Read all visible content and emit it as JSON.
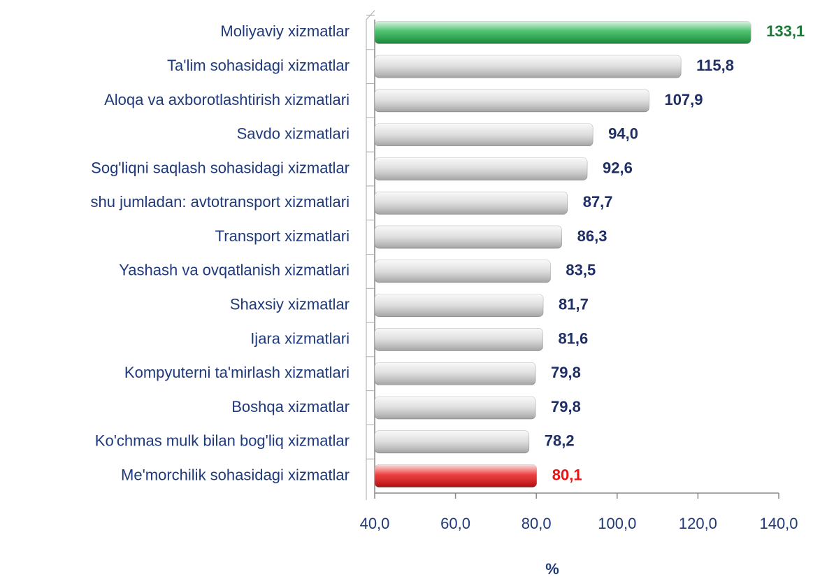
{
  "chart_data": {
    "type": "bar",
    "orientation": "horizontal",
    "categories": [
      "Moliyaviy xizmatlar",
      "Ta'lim sohasidagi xizmatlar",
      "Aloqa va axborotlashtirish xizmatlari",
      "Savdo xizmatlari",
      "Sog'liqni saqlash sohasidagi xizmatlar",
      "shu jumladan: avtotransport xizmatlari",
      "Transport xizmatlari",
      "Yashash va ovqatlanish xizmatlari",
      "Shaxsiy xizmatlar",
      "Ijara xizmatlari",
      "Kompyuterni ta'mirlash xizmatlari",
      "Boshqa xizmatlar",
      "Ko'chmas mulk bilan bog'liq xizmatlar",
      "Me'morchilik sohasidagi xizmatlar"
    ],
    "values": [
      133.1,
      115.8,
      107.9,
      94.0,
      92.6,
      87.7,
      86.3,
      83.5,
      81.7,
      81.6,
      79.8,
      79.8,
      78.2,
      80.1
    ],
    "value_labels": [
      "133,1",
      "115,8",
      "107,9",
      "94,0",
      "92,6",
      "87,7",
      "86,3",
      "83,5",
      "81,7",
      "81,6",
      "79,8",
      "79,8",
      "78,2",
      "80,1"
    ],
    "colors": [
      "#1fb24a",
      "#d9d9d9",
      "#d9d9d9",
      "#d9d9d9",
      "#d9d9d9",
      "#d9d9d9",
      "#d9d9d9",
      "#d9d9d9",
      "#d9d9d9",
      "#d9d9d9",
      "#d9d9d9",
      "#d9d9d9",
      "#d9d9d9",
      "#e81010"
    ],
    "label_colors": [
      "#1a7a36",
      "#1f2f66",
      "#1f2f66",
      "#1f2f66",
      "#1f2f66",
      "#1f2f66",
      "#1f2f66",
      "#1f2f66",
      "#1f2f66",
      "#1f2f66",
      "#1f2f66",
      "#1f2f66",
      "#1f2f66",
      "#ee1111"
    ],
    "xlim": [
      40,
      140
    ],
    "xticks": [
      {
        "value": 40,
        "label": "40,0"
      },
      {
        "value": 60,
        "label": "60,0"
      },
      {
        "value": 80,
        "label": "80,0"
      },
      {
        "value": 100,
        "label": "100,0"
      },
      {
        "value": 120,
        "label": "120,0"
      },
      {
        "value": 140,
        "label": "140,0"
      }
    ],
    "x_label": "%"
  }
}
